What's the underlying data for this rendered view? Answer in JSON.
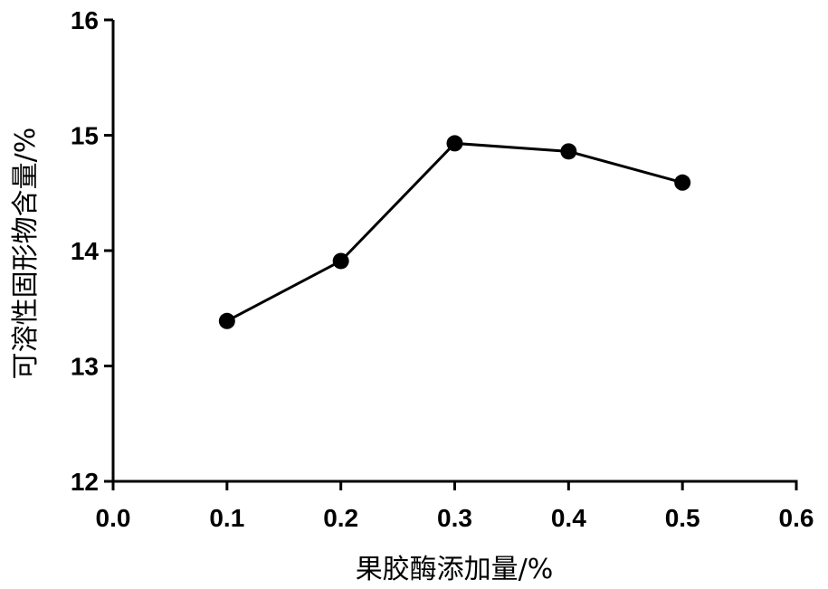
{
  "chart_data": {
    "type": "line",
    "title": "",
    "xlabel": "果胶酶添加量/%",
    "ylabel": "可溶性固形物含量/%",
    "xlim": [
      0.0,
      0.6
    ],
    "ylim": [
      12,
      16
    ],
    "xticks": [
      "0.0",
      "0.1",
      "0.2",
      "0.3",
      "0.4",
      "0.5",
      "0.6"
    ],
    "yticks": [
      "12",
      "13",
      "14",
      "15",
      "16"
    ],
    "grid": false,
    "legend": "none",
    "series": [
      {
        "x": [
          0.1,
          0.2,
          0.3,
          0.4,
          0.5
        ],
        "values": [
          13.39,
          13.91,
          14.93,
          14.86,
          14.59
        ],
        "marker": "circle",
        "color": "#000000"
      }
    ]
  }
}
